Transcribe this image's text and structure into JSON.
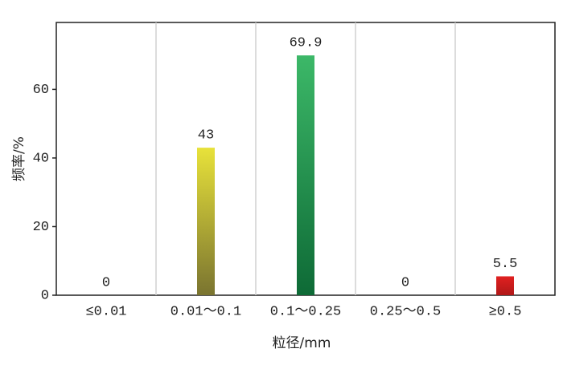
{
  "chart_data": {
    "type": "bar",
    "x_label": "粒径/mm",
    "y_label": "频率/%",
    "categories": [
      "≤0.01",
      "0.01～0.1",
      "0.1～0.25",
      "0.25～0.5",
      "≥0.5"
    ],
    "values": [
      0,
      43,
      69.9,
      0,
      5.5
    ],
    "colors": [
      [
        "#e8e23a",
        "#7a7430"
      ],
      [
        "#e8e23a",
        "#7a7430"
      ],
      [
        "#3cb868",
        "#0e6a36"
      ],
      [
        "#3cb868",
        "#0e6a36"
      ],
      [
        "#e02020",
        "#b01818"
      ]
    ],
    "ylim": [
      0,
      79.5
    ],
    "yticks": [
      0,
      20,
      40,
      60
    ],
    "grid": true
  }
}
